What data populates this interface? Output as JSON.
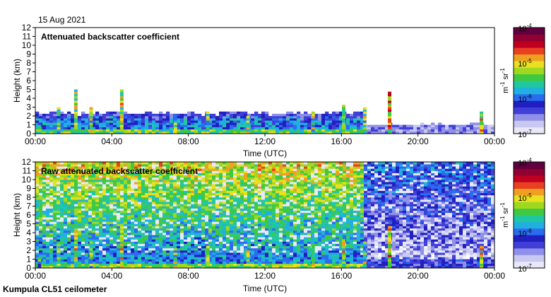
{
  "page": {
    "date": "15 Aug 2021",
    "footer": "Kumpula CL51 ceilometer"
  },
  "colors": {
    "scale": [
      "#e8e8f8",
      "#c8c8f0",
      "#9090e8",
      "#4040d8",
      "#2020c0",
      "#2a6cf0",
      "#20b0e0",
      "#20c8a0",
      "#40c840",
      "#a0d820",
      "#e8e020",
      "#f0a020",
      "#e84020",
      "#c00020",
      "#900030",
      "#600040"
    ]
  },
  "chart_data": [
    {
      "type": "heatmap",
      "title": "Attenuated backscatter coefficient",
      "xlabel": "Time (UTC)",
      "ylabel": "Height (km)",
      "x_ticks": [
        "00:00",
        "04:00",
        "08:00",
        "12:00",
        "16:00",
        "20:00",
        "00:00"
      ],
      "xlim": [
        0,
        24
      ],
      "ylim": [
        0,
        12
      ],
      "y_ticks": [
        "0",
        "1",
        "2",
        "3",
        "4",
        "5",
        "6",
        "7",
        "8",
        "9",
        "10",
        "11",
        "12"
      ],
      "colorbar": {
        "labels": [
          "10^-4",
          "10^-5",
          "10^-6",
          "10^-7"
        ],
        "values": [
          -4,
          -5,
          -6,
          -7
        ],
        "units": "m-1 sr-1",
        "unit_label": "m",
        "unit_exp1": "-1",
        "unit_mid": " sr",
        "unit_exp2": "-1",
        "tick_base": "10",
        "tick_exps": [
          "-4",
          "-5",
          "-6",
          "-7"
        ]
      }
    },
    {
      "type": "heatmap",
      "title": "Raw attenuated backscatter coefficient",
      "xlabel": "Time (UTC)",
      "ylabel": "Height (km)",
      "x_ticks": [
        "00:00",
        "04:00",
        "08:00",
        "12:00",
        "16:00",
        "20:00",
        "00:00"
      ],
      "xlim": [
        0,
        24
      ],
      "ylim": [
        0,
        12
      ],
      "y_ticks": [
        "0",
        "1",
        "2",
        "3",
        "4",
        "5",
        "6",
        "7",
        "8",
        "9",
        "10",
        "11",
        "12"
      ],
      "colorbar": {
        "labels": [
          "10^-4",
          "10^-5",
          "10^-6",
          "10^-7"
        ],
        "values": [
          -4,
          -5,
          -6,
          -7
        ],
        "units": "m-1 sr-1",
        "unit_label": "m",
        "unit_exp1": "-1",
        "unit_mid": " sr",
        "unit_exp2": "-1",
        "tick_base": "10",
        "tick_exps": [
          "-4",
          "-5",
          "-6",
          "-7"
        ]
      }
    }
  ]
}
